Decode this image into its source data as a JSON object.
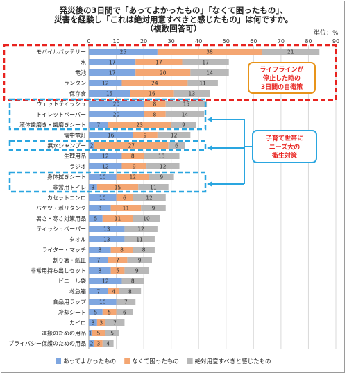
{
  "chart_data": {
    "type": "bar",
    "stacked": true,
    "orientation": "horizontal",
    "title_lines": [
      "発災後の3日間で「あってよかったもの」「なくて困ったもの」、",
      "災害を経験し「これは絶対用意すべきと感じたもの」は何ですか。",
      "（複数回答可）"
    ],
    "unit_label": "単位：%",
    "xlim": [
      0,
      90
    ],
    "xticks": [
      0,
      10,
      20,
      30,
      40,
      50,
      60,
      70,
      80,
      90
    ],
    "grid": true,
    "legend_position": "bottom",
    "categories": [
      "モバイルバッテリー",
      "水",
      "電池",
      "ランタン",
      "保存食",
      "ウェットティッシュ",
      "トイレットペーパー",
      "液体歯磨き・歯磨きシート",
      "懐中電灯",
      "無水シャンプー",
      "生理用品",
      "ラジオ",
      "身体拭きシート",
      "非常用トイレ",
      "カセットコンロ",
      "バケツ・ポリタンク",
      "暑さ・寒さ対策用品",
      "ティッシュペーパー",
      "タオル",
      "ライター・マッチ",
      "割り箸・紙皿",
      "非常用持ち出しセット",
      "ビニール袋",
      "救急箱",
      "食品用ラップ",
      "冷却シート",
      "カイロ",
      "運搬のための用品",
      "プライバシー保護のための用品"
    ],
    "series": [
      {
        "name": "あってよかったもの",
        "color": "#7ea6e0",
        "values": [
          25,
          17,
          17,
          12,
          15,
          20,
          20,
          7,
          16,
          2,
          12,
          12,
          10,
          3,
          10,
          8,
          5,
          13,
          13,
          8,
          7,
          8,
          12,
          7,
          10,
          5,
          3,
          1,
          2
        ]
      },
      {
        "name": "なくて困ったもの",
        "color": "#f4a672",
        "values": [
          38,
          17,
          20,
          24,
          16,
          8,
          8,
          23,
          9,
          27,
          8,
          9,
          12,
          15,
          6,
          11,
          11,
          0,
          0,
          8,
          7,
          5,
          0,
          4,
          0,
          5,
          3,
          5,
          3
        ]
      },
      {
        "name": "絶対用意すべきと感じたもの",
        "color": "#b8b8b8",
        "values": [
          21,
          17,
          14,
          11,
          13,
          15,
          14,
          9,
          12,
          6,
          13,
          12,
          9,
          11,
          12,
          9,
          10,
          12,
          11,
          8,
          9,
          9,
          8,
          8,
          7,
          6,
          7,
          5,
          4
        ]
      }
    ]
  },
  "annotations": {
    "lifeline": {
      "lines": [
        "ライフラインが",
        "停止した時の",
        "3日間の自衛策"
      ],
      "color": "#e8941a"
    },
    "childcare": {
      "lines": [
        "子育て世帯に",
        "ニーズ大の",
        "衛生対策"
      ],
      "color": "#2aa6e0"
    },
    "red_box_color": "#e8231f",
    "blue_box_color": "#2aa6e0"
  }
}
